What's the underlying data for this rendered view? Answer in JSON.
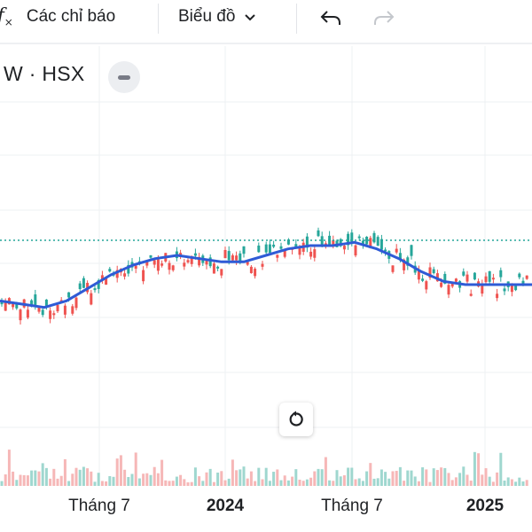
{
  "toolbar": {
    "indicators_label": "Các chỉ báo",
    "indicators_icon": "function-icon",
    "chart_type_label": "Biểu đồ",
    "chart_type_icon": "chevron-down-icon",
    "undo_icon": "undo-icon",
    "redo_icon": "redo-icon"
  },
  "legend": {
    "symbol": "W · HSX",
    "collapse_icon": "minus-icon"
  },
  "reset_icon": "rotate-left-icon",
  "colors": {
    "up": "#26a69a",
    "down": "#ef5350",
    "ma": "#2f5bd6",
    "up_volume": "#9fd7cf",
    "down_volume": "#f6b7b7",
    "price_line": "#26a69a"
  },
  "chart_data": {
    "type": "candlestick",
    "x_ticks": [
      {
        "label": "Tháng 7",
        "bold": false
      },
      {
        "label": "2024",
        "bold": true
      },
      {
        "label": "Tháng 7",
        "bold": false
      },
      {
        "label": "2025",
        "bold": true
      }
    ],
    "moving_average": [
      62,
      61,
      60,
      62,
      66,
      70,
      73,
      75,
      76,
      75,
      74,
      74,
      76,
      78,
      79,
      79,
      80,
      78,
      75,
      71,
      68,
      67,
      67,
      67,
      67
    ],
    "grid": true,
    "price_line": "dotted-horizontal"
  }
}
